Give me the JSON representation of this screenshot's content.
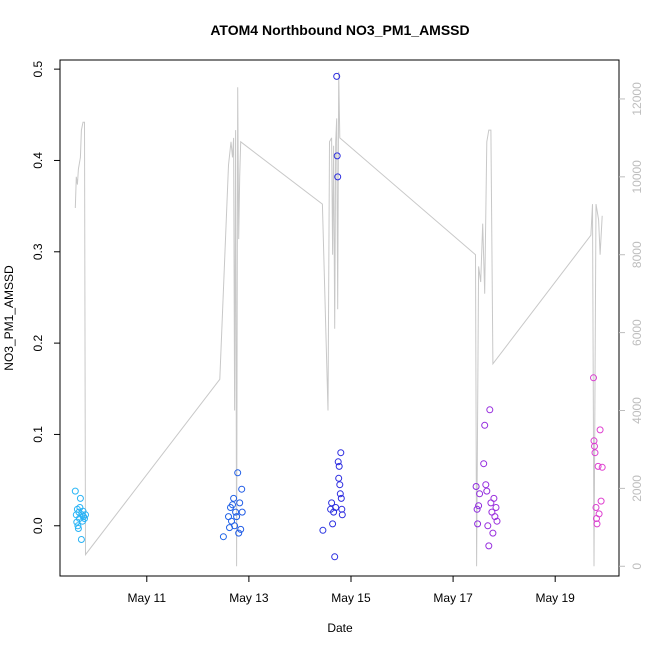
{
  "chart_data": {
    "type": "scatter",
    "title": "ATOM4 Northbound NO3_PM1_AMSSD",
    "xlabel": "Date",
    "ylabel": "NO3_PM1_AMSSD",
    "x_ticks": [
      "May 11",
      "May 13",
      "May 15",
      "May 17",
      "May 19"
    ],
    "x_tick_values": [
      11,
      13,
      15,
      17,
      19
    ],
    "xlim": [
      9.3,
      20.25
    ],
    "ylim": [
      -0.055,
      0.51
    ],
    "y_ticks": [
      0.0,
      0.1,
      0.2,
      0.3,
      0.4,
      0.5
    ],
    "y_tick_labels": [
      "0.0",
      "0.1",
      "0.2",
      "0.3",
      "0.4",
      "0.5"
    ],
    "y2_ticks": [
      0,
      2000,
      4000,
      6000,
      8000,
      10000,
      12000
    ],
    "y2_tick_labels": [
      "0",
      "2000",
      "4000",
      "6000",
      "8000",
      "10000",
      "12000"
    ],
    "y2lim": [
      -250,
      13000
    ],
    "point_color_scale": [
      "#29b6f6",
      "#1e6ee8",
      "#2c2ce0",
      "#8b2be0",
      "#e040d0"
    ],
    "series_line_color": "#c8c8c8",
    "points": [
      {
        "x": 9.6,
        "y": 0.038
      },
      {
        "x": 9.62,
        "y": 0.012
      },
      {
        "x": 9.63,
        "y": 0.004
      },
      {
        "x": 9.64,
        "y": 0.018
      },
      {
        "x": 9.65,
        "y": 0.0
      },
      {
        "x": 9.66,
        "y": -0.003
      },
      {
        "x": 9.67,
        "y": 0.015
      },
      {
        "x": 9.68,
        "y": 0.008
      },
      {
        "x": 9.69,
        "y": 0.02
      },
      {
        "x": 9.7,
        "y": 0.03
      },
      {
        "x": 9.72,
        "y": -0.015
      },
      {
        "x": 9.73,
        "y": 0.012
      },
      {
        "x": 9.74,
        "y": 0.005
      },
      {
        "x": 9.75,
        "y": 0.016
      },
      {
        "x": 9.76,
        "y": 0.01
      },
      {
        "x": 9.78,
        "y": 0.008
      },
      {
        "x": 9.8,
        "y": 0.012
      },
      {
        "x": 12.5,
        "y": -0.012
      },
      {
        "x": 12.6,
        "y": 0.01
      },
      {
        "x": 12.62,
        "y": -0.002
      },
      {
        "x": 12.64,
        "y": 0.02
      },
      {
        "x": 12.66,
        "y": 0.005
      },
      {
        "x": 12.68,
        "y": 0.023
      },
      {
        "x": 12.7,
        "y": 0.03
      },
      {
        "x": 12.72,
        "y": 0.0
      },
      {
        "x": 12.74,
        "y": 0.015
      },
      {
        "x": 12.76,
        "y": 0.01
      },
      {
        "x": 12.78,
        "y": 0.058
      },
      {
        "x": 12.8,
        "y": -0.008
      },
      {
        "x": 12.82,
        "y": 0.025
      },
      {
        "x": 12.84,
        "y": -0.004
      },
      {
        "x": 12.86,
        "y": 0.04
      },
      {
        "x": 12.87,
        "y": 0.015
      },
      {
        "x": 14.45,
        "y": -0.005
      },
      {
        "x": 14.6,
        "y": 0.018
      },
      {
        "x": 14.62,
        "y": 0.025
      },
      {
        "x": 14.64,
        "y": 0.002
      },
      {
        "x": 14.66,
        "y": 0.015
      },
      {
        "x": 14.68,
        "y": -0.034
      },
      {
        "x": 14.7,
        "y": 0.02
      },
      {
        "x": 14.72,
        "y": 0.492
      },
      {
        "x": 14.73,
        "y": 0.405
      },
      {
        "x": 14.74,
        "y": 0.382
      },
      {
        "x": 14.75,
        "y": 0.07
      },
      {
        "x": 14.76,
        "y": 0.052
      },
      {
        "x": 14.77,
        "y": 0.065
      },
      {
        "x": 14.78,
        "y": 0.045
      },
      {
        "x": 14.79,
        "y": 0.035
      },
      {
        "x": 14.8,
        "y": 0.08
      },
      {
        "x": 14.81,
        "y": 0.03
      },
      {
        "x": 14.82,
        "y": 0.018
      },
      {
        "x": 14.83,
        "y": 0.012
      },
      {
        "x": 17.45,
        "y": 0.043
      },
      {
        "x": 17.47,
        "y": 0.018
      },
      {
        "x": 17.48,
        "y": 0.002
      },
      {
        "x": 17.5,
        "y": 0.022
      },
      {
        "x": 17.52,
        "y": 0.035
      },
      {
        "x": 17.6,
        "y": 0.068
      },
      {
        "x": 17.62,
        "y": 0.11
      },
      {
        "x": 17.64,
        "y": 0.045
      },
      {
        "x": 17.66,
        "y": 0.038
      },
      {
        "x": 17.68,
        "y": 0.0
      },
      {
        "x": 17.7,
        "y": -0.022
      },
      {
        "x": 17.72,
        "y": 0.127
      },
      {
        "x": 17.74,
        "y": 0.025
      },
      {
        "x": 17.76,
        "y": 0.015
      },
      {
        "x": 17.78,
        "y": -0.008
      },
      {
        "x": 17.8,
        "y": 0.03
      },
      {
        "x": 17.82,
        "y": 0.01
      },
      {
        "x": 17.84,
        "y": 0.02
      },
      {
        "x": 17.86,
        "y": 0.005
      },
      {
        "x": 19.75,
        "y": 0.162
      },
      {
        "x": 19.76,
        "y": 0.093
      },
      {
        "x": 19.77,
        "y": 0.087
      },
      {
        "x": 19.78,
        "y": 0.08
      },
      {
        "x": 19.8,
        "y": 0.02
      },
      {
        "x": 19.81,
        "y": 0.008
      },
      {
        "x": 19.82,
        "y": 0.002
      },
      {
        "x": 19.84,
        "y": 0.065
      },
      {
        "x": 19.86,
        "y": 0.013
      },
      {
        "x": 19.88,
        "y": 0.105
      },
      {
        "x": 19.9,
        "y": 0.027
      },
      {
        "x": 19.92,
        "y": 0.064
      }
    ],
    "secondary_line": [
      {
        "x": 9.6,
        "y": 9200
      },
      {
        "x": 9.62,
        "y": 10000
      },
      {
        "x": 9.64,
        "y": 9800
      },
      {
        "x": 9.66,
        "y": 10200
      },
      {
        "x": 9.7,
        "y": 10500
      },
      {
        "x": 9.72,
        "y": 11200
      },
      {
        "x": 9.75,
        "y": 11400
      },
      {
        "x": 9.78,
        "y": 11400
      },
      {
        "x": 9.8,
        "y": 300
      },
      {
        "x": 12.43,
        "y": 4800
      },
      {
        "x": 12.6,
        "y": 10300
      },
      {
        "x": 12.65,
        "y": 10900
      },
      {
        "x": 12.68,
        "y": 10500
      },
      {
        "x": 12.7,
        "y": 11000
      },
      {
        "x": 12.72,
        "y": 4000
      },
      {
        "x": 12.74,
        "y": 11200
      },
      {
        "x": 12.76,
        "y": 0
      },
      {
        "x": 12.78,
        "y": 12300
      },
      {
        "x": 12.8,
        "y": 8400
      },
      {
        "x": 12.82,
        "y": 10000
      },
      {
        "x": 12.84,
        "y": 10900
      },
      {
        "x": 14.44,
        "y": 9300
      },
      {
        "x": 14.55,
        "y": 4000
      },
      {
        "x": 14.58,
        "y": 10900
      },
      {
        "x": 14.62,
        "y": 11000
      },
      {
        "x": 14.64,
        "y": 8000
      },
      {
        "x": 14.66,
        "y": 10800
      },
      {
        "x": 14.68,
        "y": 6100
      },
      {
        "x": 14.7,
        "y": 10900
      },
      {
        "x": 14.72,
        "y": 11500
      },
      {
        "x": 14.74,
        "y": 6600
      },
      {
        "x": 14.76,
        "y": 12700
      },
      {
        "x": 14.78,
        "y": 11000
      },
      {
        "x": 17.44,
        "y": 8000
      },
      {
        "x": 17.46,
        "y": 0
      },
      {
        "x": 17.5,
        "y": 7700
      },
      {
        "x": 17.54,
        "y": 7300
      },
      {
        "x": 17.58,
        "y": 8800
      },
      {
        "x": 17.62,
        "y": 7000
      },
      {
        "x": 17.66,
        "y": 10900
      },
      {
        "x": 17.7,
        "y": 11200
      },
      {
        "x": 17.74,
        "y": 11200
      },
      {
        "x": 17.78,
        "y": 5200
      },
      {
        "x": 19.7,
        "y": 8500
      },
      {
        "x": 19.73,
        "y": 9300
      },
      {
        "x": 19.76,
        "y": 0
      },
      {
        "x": 19.8,
        "y": 9300
      },
      {
        "x": 19.85,
        "y": 8900
      },
      {
        "x": 19.88,
        "y": 8000
      },
      {
        "x": 19.92,
        "y": 9000
      }
    ]
  }
}
